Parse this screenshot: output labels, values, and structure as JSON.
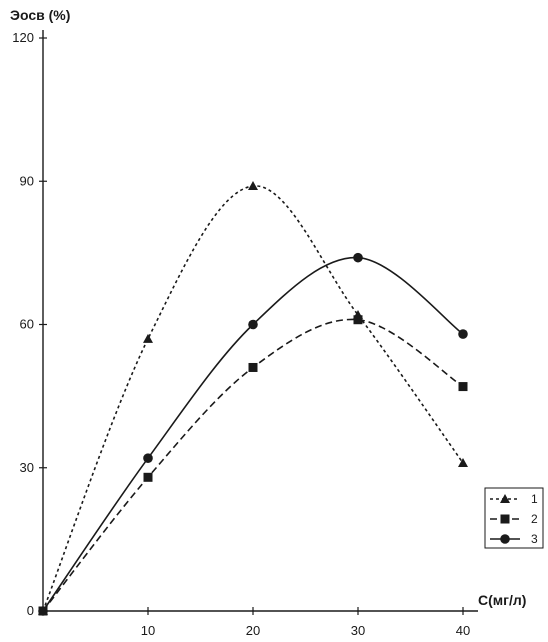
{
  "chart_data": {
    "type": "line",
    "ylabel": "Эосв (%)",
    "xlabel": "С(мг/л)",
    "xlim": [
      0,
      40
    ],
    "ylim": [
      0,
      120
    ],
    "x_ticks": [
      10,
      20,
      30,
      40
    ],
    "y_ticks": [
      0,
      30,
      60,
      90,
      120
    ],
    "x_tick_labels": [
      "10",
      "20",
      "30",
      "40"
    ],
    "y_tick_labels": [
      "0",
      "30",
      "60",
      "90",
      "120"
    ],
    "grid": false,
    "legend_position": "bottom-right",
    "series": [
      {
        "name": "1",
        "marker": "triangle",
        "line_style": "dotted",
        "x": [
          0,
          10,
          20,
          30,
          40
        ],
        "y": [
          0,
          57,
          89,
          62,
          31
        ]
      },
      {
        "name": "2",
        "marker": "square",
        "line_style": "dashed",
        "x": [
          0,
          10,
          20,
          30,
          40
        ],
        "y": [
          0,
          28,
          51,
          61,
          47
        ]
      },
      {
        "name": "3",
        "marker": "circle",
        "line_style": "solid",
        "x": [
          0,
          10,
          20,
          30,
          40
        ],
        "y": [
          0,
          32,
          60,
          74,
          58
        ]
      }
    ]
  }
}
